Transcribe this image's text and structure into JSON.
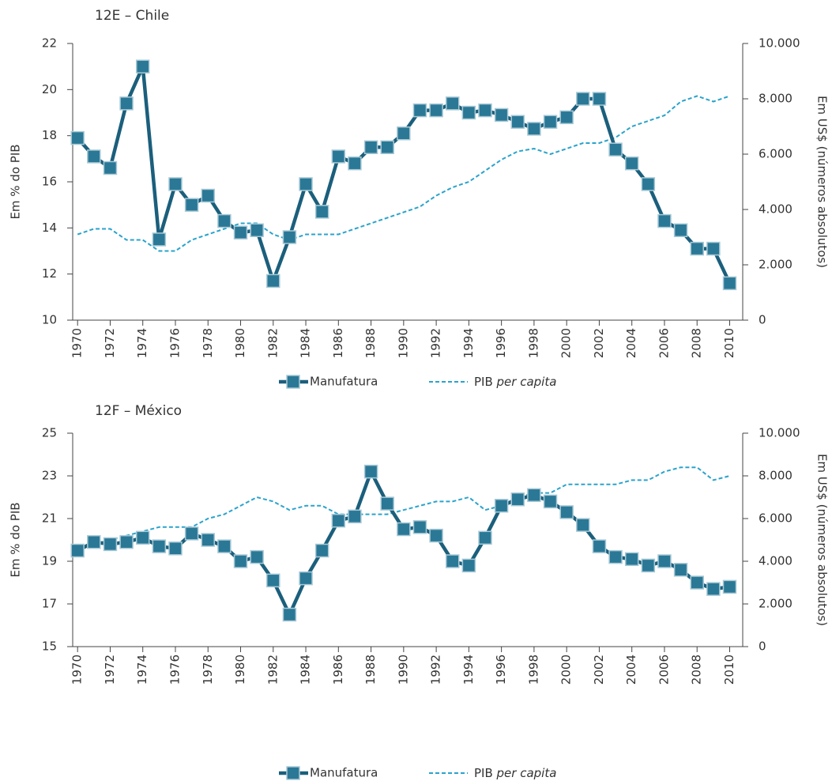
{
  "chart_data": [
    {
      "type": "line",
      "title": "12E – Chile",
      "y_label": "Em % do PIB",
      "y2_label": "Em US$ (números absolutos)",
      "x": [
        1970,
        1971,
        1972,
        1973,
        1974,
        1975,
        1976,
        1977,
        1978,
        1979,
        1980,
        1981,
        1982,
        1983,
        1984,
        1985,
        1986,
        1987,
        1988,
        1989,
        1990,
        1991,
        1992,
        1993,
        1994,
        1995,
        1996,
        1997,
        1998,
        1999,
        2000,
        2001,
        2002,
        2003,
        2004,
        2005,
        2006,
        2007,
        2008,
        2009,
        2010
      ],
      "xlim": [
        1969.7,
        2010.8
      ],
      "xticks": [
        1970,
        1972,
        1974,
        1976,
        1978,
        1980,
        1982,
        1984,
        1986,
        1988,
        1990,
        1992,
        1994,
        1996,
        1998,
        2000,
        2002,
        2004,
        2006,
        2008,
        2010
      ],
      "ylim": [
        10,
        22
      ],
      "yticks": [
        10,
        12,
        14,
        16,
        18,
        20,
        22
      ],
      "y2lim": [
        0,
        10000
      ],
      "y2ticks": [
        0,
        {
          "value": 2000,
          "label": "2.000"
        },
        {
          "value": 4000,
          "label": "4.000"
        },
        {
          "value": 6000,
          "label": "6.000"
        },
        {
          "value": 8000,
          "label": "8.000"
        },
        {
          "value": 10000,
          "label": "10.000"
        }
      ],
      "series": [
        {
          "name": "Manufatura",
          "color": "#1b5f7c",
          "values": [
            17.9,
            17.1,
            16.6,
            19.4,
            21.0,
            13.5,
            15.9,
            15.0,
            15.4,
            14.3,
            13.8,
            13.9,
            11.7,
            13.6,
            15.9,
            14.7,
            17.1,
            16.8,
            17.5,
            17.5,
            18.1,
            19.1,
            19.1,
            19.4,
            19.0,
            19.1,
            18.9,
            18.6,
            18.3,
            18.6,
            18.8,
            19.6,
            19.6,
            17.4,
            16.8,
            15.9,
            14.3,
            13.9,
            13.1,
            13.1,
            11.6
          ]
        },
        {
          "name": "PIB per capita",
          "color": "#2aa3cc",
          "axis": "y2",
          "values": [
            3100,
            3300,
            3300,
            2900,
            2900,
            2500,
            2500,
            2900,
            3100,
            3300,
            3500,
            3500,
            3100,
            2900,
            3100,
            3100,
            3100,
            3300,
            3500,
            3700,
            3900,
            4100,
            4500,
            4800,
            5000,
            5400,
            5800,
            6100,
            6200,
            6000,
            6200,
            6400,
            6400,
            6600,
            7000,
            7200,
            7400,
            7900,
            8100,
            7900,
            8100
          ]
        }
      ]
    },
    {
      "type": "line",
      "title": "12F – México",
      "y_label": "Em % do PIB",
      "y2_label": "Em US$ (números absolutos)",
      "x": [
        1970,
        1971,
        1972,
        1973,
        1974,
        1975,
        1976,
        1977,
        1978,
        1979,
        1980,
        1981,
        1982,
        1983,
        1984,
        1985,
        1986,
        1987,
        1988,
        1989,
        1990,
        1991,
        1992,
        1993,
        1994,
        1995,
        1996,
        1997,
        1998,
        1999,
        2000,
        2001,
        2002,
        2003,
        2004,
        2005,
        2006,
        2007,
        2008,
        2009,
        2010
      ],
      "xlim": [
        1969.7,
        2010.8
      ],
      "xticks": [
        1970,
        1972,
        1974,
        1976,
        1978,
        1980,
        1982,
        1984,
        1986,
        1988,
        1990,
        1992,
        1994,
        1996,
        1998,
        2000,
        2002,
        2004,
        2006,
        2008,
        2010
      ],
      "ylim": [
        15,
        25
      ],
      "yticks": [
        15,
        17,
        19,
        21,
        23,
        25
      ],
      "y2lim": [
        0,
        10000
      ],
      "y2ticks": [
        0,
        {
          "value": 2000,
          "label": "2.000"
        },
        {
          "value": 4000,
          "label": "4.000"
        },
        {
          "value": 6000,
          "label": "6.000"
        },
        {
          "value": 8000,
          "label": "8.000"
        },
        {
          "value": 10000,
          "label": "10.000"
        }
      ],
      "series": [
        {
          "name": "Manufatura",
          "color": "#1b5f7c",
          "values": [
            19.5,
            19.9,
            19.8,
            19.9,
            20.1,
            19.7,
            19.6,
            20.3,
            20.0,
            19.7,
            19.0,
            19.2,
            18.1,
            16.5,
            18.2,
            19.5,
            20.9,
            21.1,
            23.2,
            21.7,
            20.5,
            20.6,
            20.2,
            19.0,
            18.8,
            20.1,
            21.6,
            21.9,
            22.1,
            21.8,
            21.3,
            20.7,
            19.7,
            19.2,
            19.1,
            18.8,
            19.0,
            18.6,
            18.0,
            17.7,
            17.8
          ]
        },
        {
          "name": "PIB per capita",
          "color": "#2aa3cc",
          "axis": "y2",
          "values": [
            4500,
            4800,
            5000,
            5200,
            5400,
            5600,
            5600,
            5600,
            6000,
            6200,
            6600,
            7000,
            6800,
            6400,
            6600,
            6600,
            6200,
            6200,
            6200,
            6200,
            6400,
            6600,
            6800,
            6800,
            7000,
            6400,
            6600,
            7000,
            7200,
            7200,
            7600,
            7600,
            7600,
            7600,
            7800,
            7800,
            8200,
            8400,
            8400,
            7800,
            8000
          ]
        }
      ]
    }
  ]
}
